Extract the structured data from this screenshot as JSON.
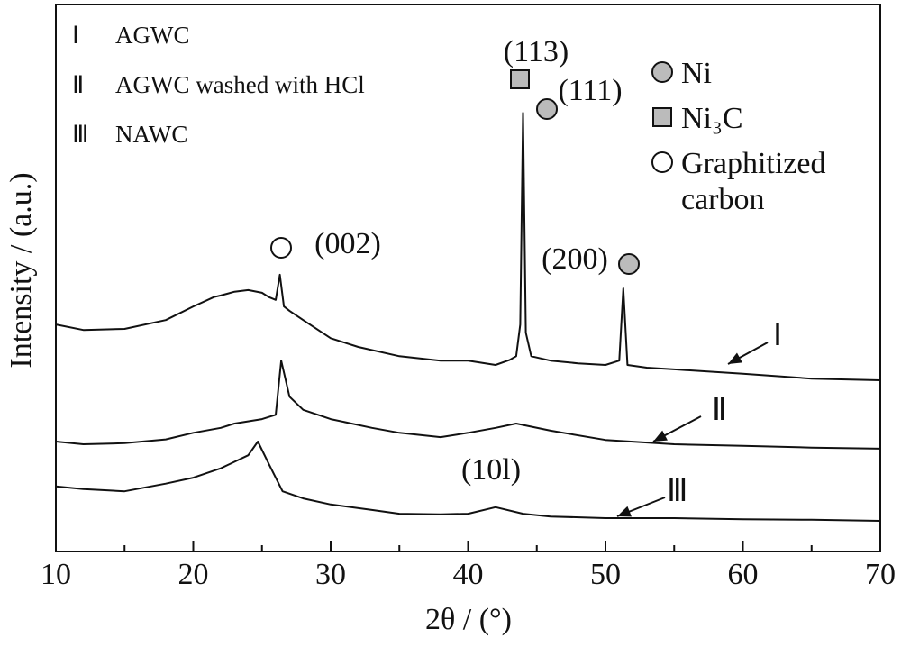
{
  "chart_data": {
    "type": "line",
    "x_label": "2θ / (°)",
    "y_label": "Intensity / (a.u.)",
    "xlim": [
      10,
      70
    ],
    "xticks": [
      10,
      20,
      30,
      40,
      50,
      60,
      70
    ],
    "ylim": [
      0,
      100
    ],
    "series": [
      {
        "name": "AGWC",
        "label": "Ⅰ",
        "color": "#111111",
        "x": [
          10,
          12,
          15,
          18,
          20,
          21.5,
          22,
          23,
          24,
          25,
          25.5,
          26,
          26.3,
          26.6,
          27,
          28,
          30,
          32,
          35,
          38,
          40,
          42,
          43,
          43.5,
          43.8,
          44.0,
          44.2,
          44.6,
          46,
          48,
          50,
          51,
          51.3,
          51.6,
          53,
          55,
          60,
          65,
          70
        ],
        "values": [
          41.5,
          40.5,
          40.7,
          42.3,
          44.8,
          46.5,
          46.8,
          47.5,
          47.8,
          47.3,
          46.5,
          46.0,
          50.6,
          44.8,
          44.0,
          42.3,
          39.0,
          37.4,
          35.7,
          34.9,
          34.9,
          34.1,
          35.0,
          35.7,
          41.5,
          80.2,
          40.0,
          35.7,
          34.9,
          34.4,
          34.1,
          34.9,
          48.1,
          34.1,
          33.6,
          33.3,
          32.5,
          31.6,
          31.3
        ]
      },
      {
        "name": "AGWC washed with HCl",
        "label": "Ⅱ",
        "color": "#111111",
        "x": [
          10,
          12,
          15,
          18,
          20,
          22,
          23,
          25,
          26,
          26.4,
          27,
          28,
          30,
          33,
          35,
          38,
          40,
          42,
          43.5,
          46,
          50,
          55,
          60,
          65,
          70
        ],
        "values": [
          20.1,
          19.6,
          19.8,
          20.5,
          21.7,
          22.6,
          23.4,
          24.2,
          25.0,
          34.9,
          28.3,
          25.9,
          24.2,
          22.6,
          21.7,
          20.9,
          21.7,
          22.6,
          23.4,
          22.1,
          20.4,
          19.6,
          19.3,
          19.0,
          18.8
        ]
      },
      {
        "name": "NAWC",
        "label": "Ⅲ",
        "color": "#111111",
        "x": [
          10,
          12,
          15,
          18,
          20,
          22,
          24,
          24.7,
          25.5,
          26.5,
          28,
          30,
          33,
          35,
          38,
          40,
          42,
          44,
          46,
          50,
          55,
          60,
          65,
          70
        ],
        "values": [
          11.9,
          11.4,
          11.0,
          12.4,
          13.5,
          15.2,
          17.6,
          20.1,
          16.0,
          11.0,
          9.7,
          8.6,
          7.6,
          6.9,
          6.8,
          6.9,
          8.1,
          6.9,
          6.4,
          6.1,
          6.1,
          5.9,
          5.8,
          5.6
        ]
      }
    ],
    "peak_labels": [
      "(002)",
      "(113)",
      "(111)",
      "(200)",
      "(10l)"
    ],
    "phase_legend": [
      "Ni",
      "Ni₃C",
      "Graphitized carbon"
    ]
  }
}
